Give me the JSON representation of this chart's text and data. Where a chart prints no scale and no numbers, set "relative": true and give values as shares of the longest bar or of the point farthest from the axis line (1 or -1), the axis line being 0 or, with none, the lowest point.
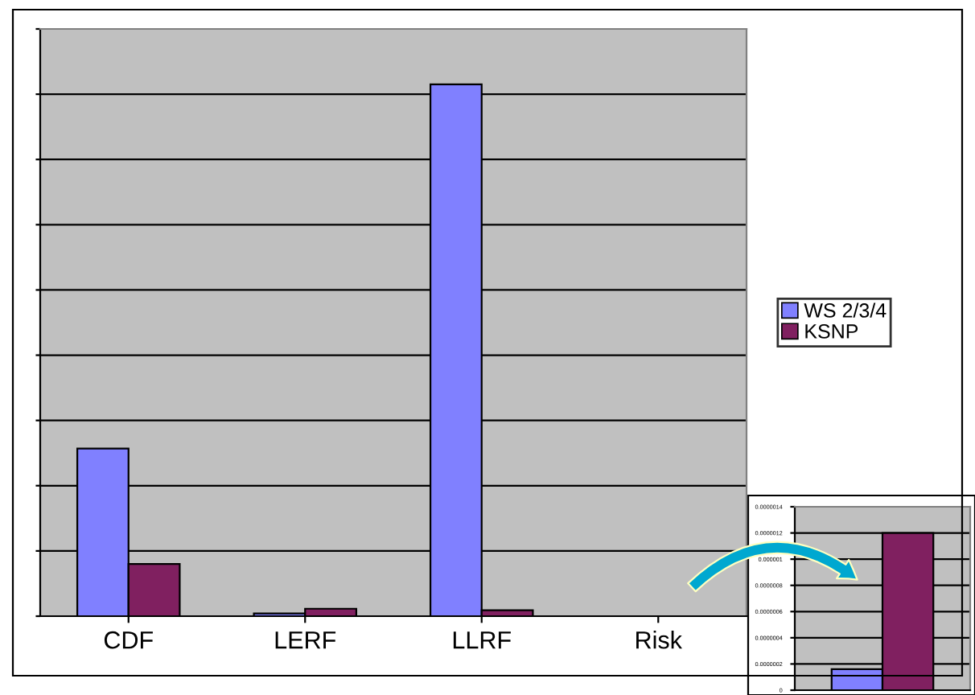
{
  "chart_data": [
    {
      "type": "bar",
      "relative": true,
      "categories": [
        "CDF",
        "LERF",
        "LLRF",
        "Risk"
      ],
      "series": [
        {
          "name": "WS 2/3/4",
          "color": "#8080ff",
          "values": [
            0.315,
            0.005,
            1,
            null
          ]
        },
        {
          "name": "KSNP",
          "color": "#802060",
          "values": [
            0.098,
            0.014,
            0.011,
            null
          ]
        }
      ],
      "grid": "y",
      "legend": "right"
    },
    {
      "type": "bar",
      "categories": [
        null
      ],
      "series": [
        {
          "color": "#8080ff",
          "values": [
            1.6e-07
          ]
        },
        {
          "color": "#802060",
          "values": [
            1.2e-06
          ]
        }
      ],
      "ylim": [
        0,
        1.4e-06
      ],
      "yticks": [
        0,
        {
          "value": 2e-07,
          "label": "0.0000002"
        },
        {
          "value": 4e-07,
          "label": "0.0000004"
        },
        {
          "value": 6e-07,
          "label": "0.0000006"
        },
        {
          "value": 8e-07,
          "label": "0.0000008"
        },
        {
          "value": 1e-06,
          "label": "0.000001"
        },
        {
          "value": 1.2e-06,
          "label": "0.0000012"
        },
        {
          "value": 1.4e-06,
          "label": "0.0000014"
        }
      ],
      "grid": "y",
      "tick_labels": "y"
    }
  ]
}
